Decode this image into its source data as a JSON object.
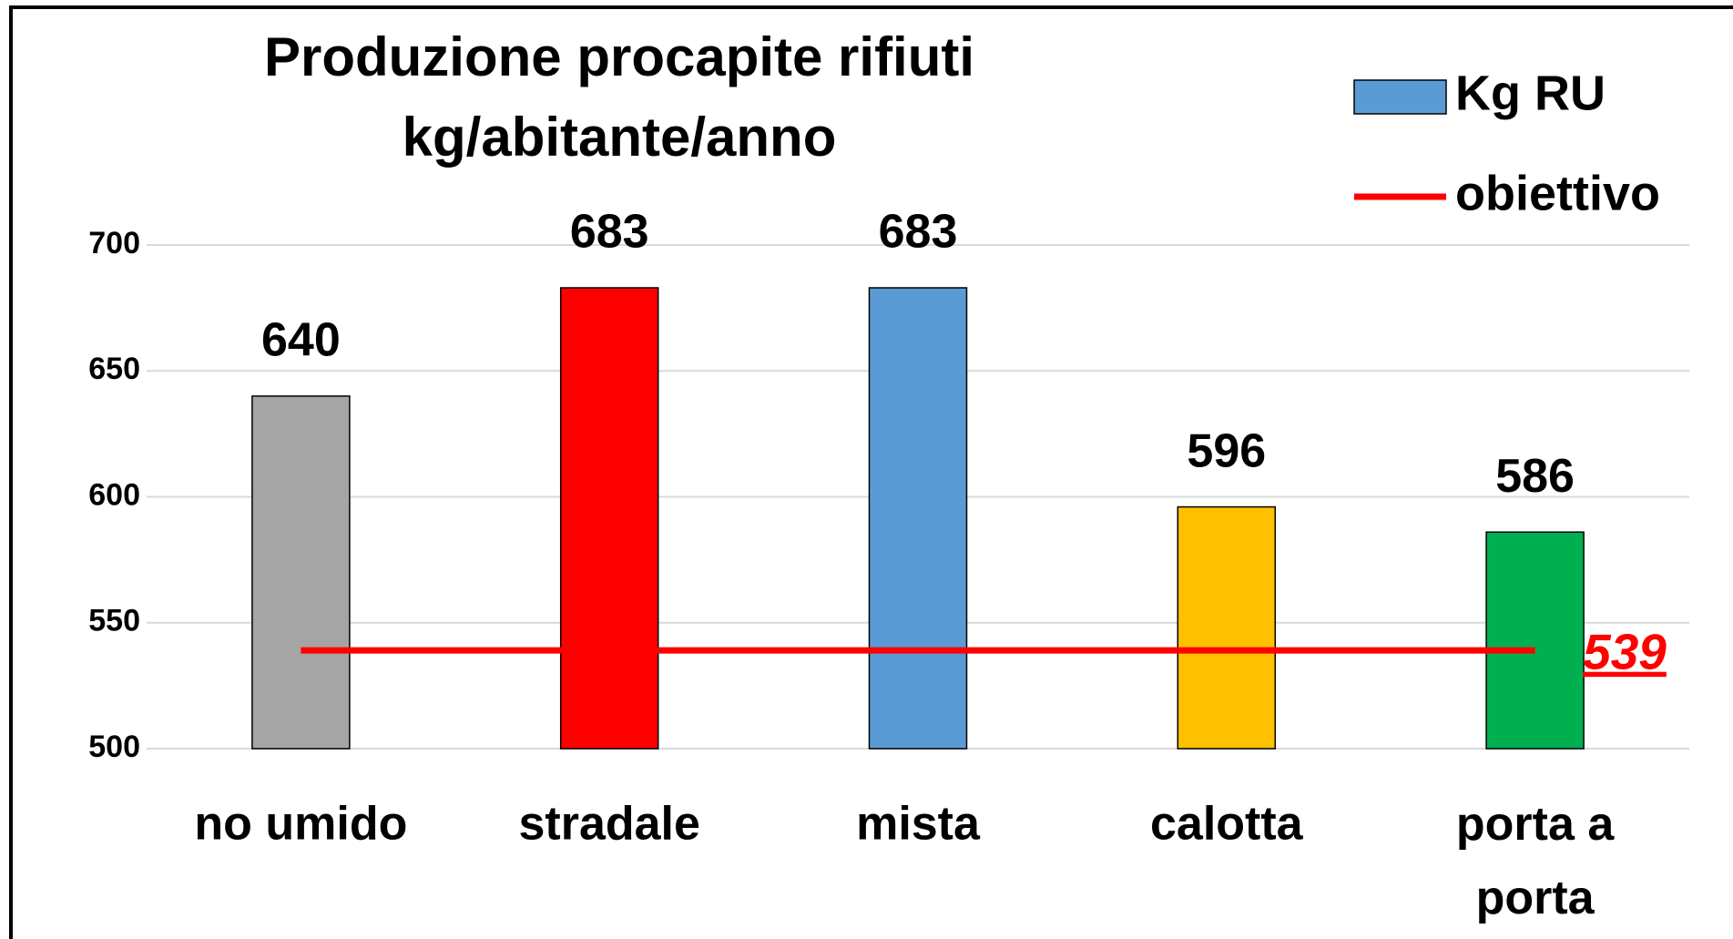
{
  "chart_data": {
    "type": "bar",
    "title": [
      "Produzione procapite rifiuti",
      "kg/abitante/anno"
    ],
    "categories": [
      "no umido",
      "stradale",
      "mista",
      "calotta",
      "porta a porta"
    ],
    "series": [
      {
        "name": "Kg RU",
        "type": "bar",
        "color": "#5b9bd5",
        "colors": [
          "#a5a5a5",
          "#ff0000",
          "#5b9bd5",
          "#ffc000",
          "#00b050"
        ],
        "values": [
          640,
          683,
          683,
          596,
          586
        ]
      },
      {
        "name": "obiettivo",
        "type": "line",
        "color": "#ff0000",
        "values": [
          539,
          539,
          539,
          539,
          539
        ]
      }
    ],
    "ylim": [
      500,
      700
    ],
    "yticks": [
      500,
      550,
      600,
      650,
      700
    ],
    "grid": true,
    "legend": "top-right"
  }
}
